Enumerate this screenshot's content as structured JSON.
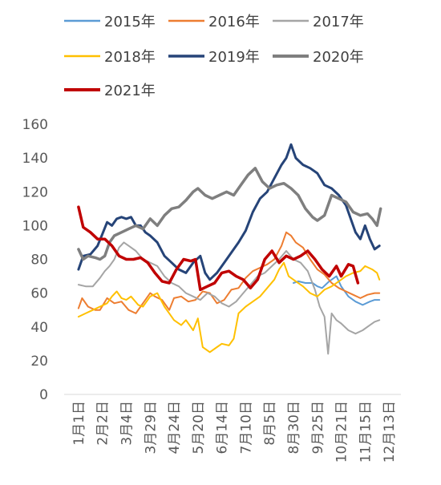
{
  "chart_data": {
    "type": "line",
    "title": "",
    "xlabel": "",
    "ylabel": "",
    "ylim": [
      0,
      160
    ],
    "y_ticks": [
      0,
      20,
      40,
      60,
      80,
      100,
      120,
      140,
      160
    ],
    "x_tick_labels": [
      "1月1日",
      "2月2日",
      "3月4日",
      "3月29日",
      "4月24日",
      "5月20日",
      "6月14日",
      "7月10日",
      "8月5日",
      "8月30日",
      "9月25日",
      "10月21日",
      "11月15日",
      "12月13日"
    ],
    "grid": false,
    "legend_position": "top",
    "series": [
      {
        "name": "2015年",
        "color": "#5B9BD5",
        "width": 2,
        "points": [
          [
            9.0,
            66
          ],
          [
            9.2,
            67
          ],
          [
            9.5,
            66
          ],
          [
            9.8,
            66
          ],
          [
            10.0,
            64
          ],
          [
            10.2,
            63
          ],
          [
            10.5,
            67
          ],
          [
            10.8,
            70
          ],
          [
            11.0,
            64
          ],
          [
            11.3,
            58
          ],
          [
            11.6,
            55
          ],
          [
            11.9,
            53
          ],
          [
            12.2,
            55
          ],
          [
            12.4,
            56
          ],
          [
            12.6,
            56
          ]
        ]
      },
      {
        "name": "2016年",
        "color": "#ED7D31",
        "width": 2,
        "points": [
          [
            0,
            51
          ],
          [
            0.15,
            57
          ],
          [
            0.4,
            52
          ],
          [
            0.7,
            50
          ],
          [
            0.9,
            50
          ],
          [
            1.2,
            57
          ],
          [
            1.5,
            54
          ],
          [
            1.8,
            55
          ],
          [
            2.1,
            50
          ],
          [
            2.4,
            48
          ],
          [
            2.6,
            52
          ],
          [
            2.8,
            56
          ],
          [
            3.0,
            60
          ],
          [
            3.2,
            58
          ],
          [
            3.5,
            56
          ],
          [
            3.8,
            50
          ],
          [
            4.0,
            57
          ],
          [
            4.3,
            58
          ],
          [
            4.6,
            55
          ],
          [
            4.9,
            56
          ],
          [
            5.2,
            61
          ],
          [
            5.5,
            60
          ],
          [
            5.8,
            54
          ],
          [
            6.1,
            56
          ],
          [
            6.4,
            62
          ],
          [
            6.7,
            63
          ],
          [
            7.0,
            69
          ],
          [
            7.3,
            73
          ],
          [
            7.6,
            75
          ],
          [
            7.9,
            77
          ],
          [
            8.2,
            80
          ],
          [
            8.5,
            88
          ],
          [
            8.7,
            96
          ],
          [
            8.9,
            94
          ],
          [
            9.1,
            90
          ],
          [
            9.4,
            87
          ],
          [
            9.7,
            80
          ],
          [
            10.0,
            74
          ],
          [
            10.3,
            71
          ],
          [
            10.6,
            66
          ],
          [
            10.9,
            63
          ],
          [
            11.2,
            61
          ],
          [
            11.5,
            59
          ],
          [
            11.8,
            57
          ],
          [
            12.1,
            59
          ],
          [
            12.4,
            60
          ],
          [
            12.6,
            60
          ]
        ]
      },
      {
        "name": "2017年",
        "color": "#A5A5A5",
        "width": 2,
        "points": [
          [
            0,
            65
          ],
          [
            0.3,
            64
          ],
          [
            0.6,
            64
          ],
          [
            0.9,
            69
          ],
          [
            1.1,
            73
          ],
          [
            1.3,
            76
          ],
          [
            1.5,
            80
          ],
          [
            1.7,
            87
          ],
          [
            1.9,
            90
          ],
          [
            2.1,
            88
          ],
          [
            2.4,
            85
          ],
          [
            2.7,
            80
          ],
          [
            3.0,
            78
          ],
          [
            3.3,
            76
          ],
          [
            3.6,
            70
          ],
          [
            3.9,
            66
          ],
          [
            4.2,
            64
          ],
          [
            4.5,
            60
          ],
          [
            4.8,
            58
          ],
          [
            5.1,
            56
          ],
          [
            5.4,
            60
          ],
          [
            5.7,
            58
          ],
          [
            6.0,
            54
          ],
          [
            6.3,
            52
          ],
          [
            6.6,
            55
          ],
          [
            6.9,
            60
          ],
          [
            7.2,
            65
          ],
          [
            7.5,
            70
          ],
          [
            7.8,
            72
          ],
          [
            8.1,
            76
          ],
          [
            8.4,
            80
          ],
          [
            8.7,
            85
          ],
          [
            9.0,
            80
          ],
          [
            9.3,
            78
          ],
          [
            9.6,
            73
          ],
          [
            9.9,
            62
          ],
          [
            10.1,
            52
          ],
          [
            10.3,
            46
          ],
          [
            10.45,
            24
          ],
          [
            10.6,
            48
          ],
          [
            10.8,
            44
          ],
          [
            11.0,
            42
          ],
          [
            11.3,
            38
          ],
          [
            11.6,
            36
          ],
          [
            11.9,
            38
          ],
          [
            12.2,
            41
          ],
          [
            12.4,
            43
          ],
          [
            12.6,
            44
          ]
        ]
      },
      {
        "name": "2018年",
        "color": "#FFC000",
        "width": 2,
        "points": [
          [
            0,
            46
          ],
          [
            0.3,
            48
          ],
          [
            0.6,
            50
          ],
          [
            0.9,
            52
          ],
          [
            1.2,
            54
          ],
          [
            1.4,
            58
          ],
          [
            1.6,
            61
          ],
          [
            1.8,
            57
          ],
          [
            2.0,
            56
          ],
          [
            2.2,
            58
          ],
          [
            2.5,
            53
          ],
          [
            2.7,
            52
          ],
          [
            3.0,
            58
          ],
          [
            3.3,
            60
          ],
          [
            3.6,
            52
          ],
          [
            3.8,
            48
          ],
          [
            4.0,
            44
          ],
          [
            4.3,
            41
          ],
          [
            4.5,
            44
          ],
          [
            4.8,
            38
          ],
          [
            5.0,
            45
          ],
          [
            5.2,
            28
          ],
          [
            5.5,
            25
          ],
          [
            5.8,
            28
          ],
          [
            6.0,
            30
          ],
          [
            6.3,
            29
          ],
          [
            6.5,
            33
          ],
          [
            6.7,
            48
          ],
          [
            7.0,
            52
          ],
          [
            7.3,
            55
          ],
          [
            7.6,
            58
          ],
          [
            7.9,
            63
          ],
          [
            8.2,
            68
          ],
          [
            8.4,
            74
          ],
          [
            8.6,
            78
          ],
          [
            8.8,
            70
          ],
          [
            9.1,
            67
          ],
          [
            9.4,
            64
          ],
          [
            9.7,
            60
          ],
          [
            10.0,
            58
          ],
          [
            10.3,
            62
          ],
          [
            10.6,
            64
          ],
          [
            10.9,
            67
          ],
          [
            11.2,
            70
          ],
          [
            11.5,
            72
          ],
          [
            11.8,
            73
          ],
          [
            12.0,
            76
          ],
          [
            12.3,
            74
          ],
          [
            12.5,
            72
          ],
          [
            12.6,
            68
          ]
        ]
      },
      {
        "name": "2019年",
        "color": "#264478",
        "width": 3,
        "points": [
          [
            0,
            74
          ],
          [
            0.2,
            82
          ],
          [
            0.5,
            83
          ],
          [
            0.8,
            88
          ],
          [
            1.0,
            95
          ],
          [
            1.2,
            102
          ],
          [
            1.4,
            100
          ],
          [
            1.6,
            104
          ],
          [
            1.8,
            105
          ],
          [
            2.0,
            104
          ],
          [
            2.2,
            105
          ],
          [
            2.4,
            100
          ],
          [
            2.6,
            100
          ],
          [
            2.8,
            96
          ],
          [
            3.0,
            94
          ],
          [
            3.3,
            90
          ],
          [
            3.6,
            82
          ],
          [
            3.9,
            78
          ],
          [
            4.2,
            74
          ],
          [
            4.5,
            72
          ],
          [
            4.8,
            78
          ],
          [
            5.1,
            82
          ],
          [
            5.3,
            72
          ],
          [
            5.5,
            68
          ],
          [
            5.8,
            72
          ],
          [
            6.1,
            78
          ],
          [
            6.4,
            84
          ],
          [
            6.7,
            90
          ],
          [
            7.0,
            97
          ],
          [
            7.3,
            108
          ],
          [
            7.6,
            116
          ],
          [
            7.9,
            120
          ],
          [
            8.2,
            128
          ],
          [
            8.5,
            136
          ],
          [
            8.7,
            140
          ],
          [
            8.9,
            148
          ],
          [
            9.1,
            140
          ],
          [
            9.4,
            136
          ],
          [
            9.7,
            134
          ],
          [
            10.0,
            131
          ],
          [
            10.3,
            124
          ],
          [
            10.6,
            122
          ],
          [
            10.9,
            118
          ],
          [
            11.2,
            112
          ],
          [
            11.4,
            104
          ],
          [
            11.6,
            96
          ],
          [
            11.8,
            92
          ],
          [
            12.0,
            100
          ],
          [
            12.2,
            92
          ],
          [
            12.4,
            86
          ],
          [
            12.6,
            88
          ]
        ]
      },
      {
        "name": "2020年",
        "color": "#7F7F7F",
        "width": 3.5,
        "points": [
          [
            0,
            86
          ],
          [
            0.2,
            80
          ],
          [
            0.4,
            82
          ],
          [
            0.7,
            81
          ],
          [
            0.9,
            80
          ],
          [
            1.1,
            82
          ],
          [
            1.3,
            90
          ],
          [
            1.5,
            94
          ],
          [
            1.8,
            96
          ],
          [
            2.1,
            98
          ],
          [
            2.4,
            100
          ],
          [
            2.7,
            98
          ],
          [
            3.0,
            104
          ],
          [
            3.3,
            100
          ],
          [
            3.6,
            106
          ],
          [
            3.9,
            110
          ],
          [
            4.2,
            111
          ],
          [
            4.5,
            115
          ],
          [
            4.8,
            120
          ],
          [
            5.0,
            122
          ],
          [
            5.3,
            118
          ],
          [
            5.6,
            116
          ],
          [
            5.9,
            118
          ],
          [
            6.2,
            120
          ],
          [
            6.5,
            118
          ],
          [
            6.8,
            124
          ],
          [
            7.1,
            130
          ],
          [
            7.4,
            134
          ],
          [
            7.7,
            126
          ],
          [
            8.0,
            122
          ],
          [
            8.3,
            124
          ],
          [
            8.6,
            125
          ],
          [
            8.9,
            122
          ],
          [
            9.2,
            118
          ],
          [
            9.5,
            110
          ],
          [
            9.8,
            105
          ],
          [
            10.0,
            103
          ],
          [
            10.3,
            106
          ],
          [
            10.6,
            118
          ],
          [
            10.9,
            116
          ],
          [
            11.2,
            114
          ],
          [
            11.5,
            108
          ],
          [
            11.8,
            106
          ],
          [
            12.1,
            107
          ],
          [
            12.3,
            104
          ],
          [
            12.5,
            100
          ],
          [
            12.65,
            110
          ]
        ]
      },
      {
        "name": "2021年",
        "color": "#C00000",
        "width": 3.5,
        "points": [
          [
            0,
            111
          ],
          [
            0.2,
            99
          ],
          [
            0.5,
            96
          ],
          [
            0.8,
            92
          ],
          [
            1.1,
            92
          ],
          [
            1.4,
            88
          ],
          [
            1.7,
            82
          ],
          [
            2.0,
            80
          ],
          [
            2.3,
            80
          ],
          [
            2.6,
            81
          ],
          [
            2.9,
            78
          ],
          [
            3.2,
            72
          ],
          [
            3.5,
            67
          ],
          [
            3.8,
            66
          ],
          [
            4.1,
            74
          ],
          [
            4.4,
            80
          ],
          [
            4.7,
            79
          ],
          [
            4.9,
            80
          ],
          [
            5.1,
            62
          ],
          [
            5.4,
            64
          ],
          [
            5.7,
            66
          ],
          [
            6.0,
            72
          ],
          [
            6.3,
            73
          ],
          [
            6.6,
            70
          ],
          [
            6.9,
            68
          ],
          [
            7.2,
            63
          ],
          [
            7.5,
            68
          ],
          [
            7.8,
            80
          ],
          [
            8.1,
            85
          ],
          [
            8.4,
            78
          ],
          [
            8.7,
            82
          ],
          [
            9.0,
            80
          ],
          [
            9.3,
            82
          ],
          [
            9.6,
            85
          ],
          [
            9.9,
            80
          ],
          [
            10.2,
            74
          ],
          [
            10.5,
            70
          ],
          [
            10.8,
            76
          ],
          [
            11.0,
            70
          ],
          [
            11.3,
            77
          ],
          [
            11.5,
            76
          ],
          [
            11.7,
            66
          ]
        ]
      }
    ]
  }
}
